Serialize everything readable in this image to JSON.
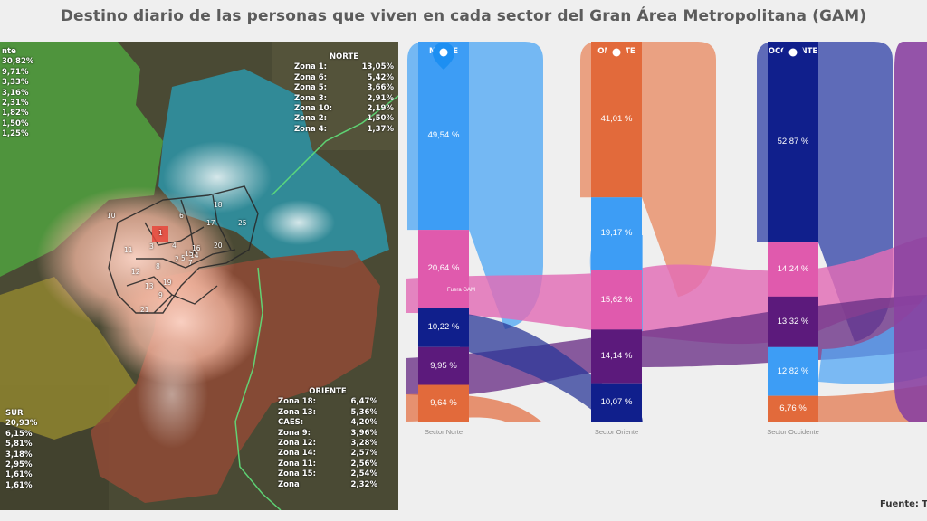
{
  "title": "Destino diario de las personas que viven en cada sector del Gran Área Metropolitana (GAM)",
  "map": {
    "zone_numbers": [
      "10",
      "1",
      "2",
      "3",
      "4",
      "5",
      "6",
      "7",
      "8",
      "9",
      "11",
      "12",
      "13",
      "14",
      "15",
      "16",
      "17",
      "18",
      "19",
      "20",
      "21",
      "25"
    ],
    "legend_west": {
      "heading": "nte",
      "values": [
        "30,82%",
        "9,71%",
        "3,33%",
        "3,16%",
        "2,31%",
        "1,82%",
        "1,50%",
        "1,25%"
      ]
    },
    "legend_norte": {
      "heading": "NORTE",
      "rows": [
        {
          "label": "Zona 1:",
          "value": "13,05%"
        },
        {
          "label": "Zona 6:",
          "value": "5,42%"
        },
        {
          "label": "Zona 5:",
          "value": "3,66%"
        },
        {
          "label": "Zona 3:",
          "value": "2,91%"
        },
        {
          "label": "Zona 10:",
          "value": "2,19%"
        },
        {
          "label": "Zona 2:",
          "value": "1,50%"
        },
        {
          "label": "Zona 4:",
          "value": "1,37%"
        }
      ]
    },
    "legend_sur": {
      "heading": "SUR",
      "values": [
        "20,93%",
        "6,15%",
        "5,81%",
        "3,18%",
        "2,95%",
        "1,61%",
        "1,61%"
      ]
    },
    "legend_oriente": {
      "heading": "ORIENTE",
      "rows": [
        {
          "label": "Zona 18:",
          "value": "6,47%"
        },
        {
          "label": "Zona 13:",
          "value": "5,36%"
        },
        {
          "label": "CAES:",
          "value": "4,20%"
        },
        {
          "label": "Zona 9:",
          "value": "3,96%"
        },
        {
          "label": "Zona 12:",
          "value": "3,28%"
        },
        {
          "label": "Zona 14:",
          "value": "2,57%"
        },
        {
          "label": "Zona 11:",
          "value": "2,56%"
        },
        {
          "label": "Zona 15:",
          "value": "2,54%"
        },
        {
          "label": "Zona",
          "value": "2,32%"
        }
      ]
    },
    "colors": {
      "norte": "#2f8fa0",
      "west": "#4f9a3e",
      "sur": "#8c8230",
      "oriente": "#8a4a36"
    }
  },
  "sankey": {
    "columns": [
      {
        "header": "NORTE",
        "footer": "Sector Norte",
        "color": "#1d8ff2",
        "segments": [
          {
            "value": "49,54 %",
            "color": "#3d9df5"
          },
          {
            "value": "20,64 %",
            "color": "#e05aad"
          },
          {
            "value": "10,22 %",
            "color": "#101f8c"
          },
          {
            "value": "9,95 %",
            "color": "#5c1a7c"
          },
          {
            "value": "9,64 %",
            "color": "#e26a3b"
          }
        ],
        "note": "Fuera GAM"
      },
      {
        "header": "ORIENTE",
        "footer": "Sector Oriente",
        "color": "#e26a3b",
        "segments": [
          {
            "value": "41,01 %",
            "color": "#e26a3b"
          },
          {
            "value": "19,17 %",
            "color": "#3d9df5"
          },
          {
            "value": "15,62 %",
            "color": "#e05aad"
          },
          {
            "value": "14,14 %",
            "color": "#5c1a7c"
          },
          {
            "value": "10,07 %",
            "color": "#101f8c"
          }
        ]
      },
      {
        "header": "OCCIDENTE",
        "footer": "Sector Occidente",
        "color": "#101f8c",
        "segments": [
          {
            "value": "52,87 %",
            "color": "#101f8c"
          },
          {
            "value": "14,24 %",
            "color": "#e05aad"
          },
          {
            "value": "13,32 %",
            "color": "#5c1a7c"
          },
          {
            "value": "12,82 %",
            "color": "#3d9df5"
          },
          {
            "value": "6,76 %",
            "color": "#e26a3b"
          }
        ]
      }
    ]
  },
  "source": "Fuente: T"
}
